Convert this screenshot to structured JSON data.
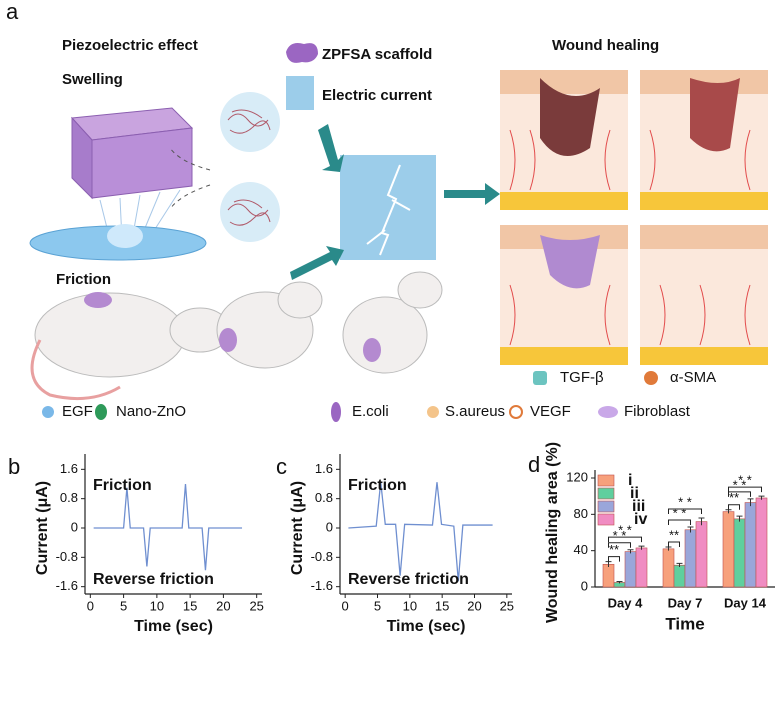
{
  "panel_a": {
    "label": "a",
    "heading_left": "Piezoelectric effect",
    "swelling": "Swelling",
    "friction": "Friction",
    "scaffold": "ZPFSA scaffold",
    "current": "Electric current",
    "heading_right": "Wound healing",
    "legend": [
      "TGF-β",
      "α-SMA",
      "EGF",
      "Nano-ZnO",
      "E.coli",
      "S.aureus",
      "VEGF",
      "Fibroblast"
    ]
  },
  "chart_data": [
    {
      "type": "line",
      "label": "b",
      "xlabel": "Time (sec)",
      "ylabel": "Current (μA)",
      "annotations": [
        "Friction",
        "Reverse friction"
      ],
      "color": "#6f8fd0",
      "x": [
        0.5,
        5,
        5.5,
        6,
        8,
        8.5,
        9,
        13.8,
        14.3,
        14.8,
        16.8,
        17.3,
        17.8,
        22.8
      ],
      "values": [
        0,
        0,
        1.1,
        0,
        0,
        -1.05,
        0,
        0,
        1.2,
        0,
        0,
        -1.15,
        0,
        0
      ],
      "xlim": [
        -0.8,
        25.8
      ],
      "xticks": [
        0,
        5,
        10,
        15,
        20,
        25
      ],
      "ylim": [
        -1.8,
        1.8
      ],
      "yticks": [
        1.6,
        0.8,
        0,
        -0.8,
        -1.6
      ]
    },
    {
      "type": "line",
      "label": "c",
      "xlabel": "Time (sec)",
      "ylabel": "Current (μA)",
      "annotations": [
        "Friction",
        "Reverse friction"
      ],
      "color": "#6f8fd0",
      "x": [
        0.5,
        4.8,
        5.5,
        6.2,
        7.8,
        8.5,
        9.2,
        13.5,
        14.2,
        14.9,
        16.8,
        17.5,
        18.2,
        22.8
      ],
      "values": [
        0,
        0.05,
        1.25,
        0.1,
        0.1,
        -1.3,
        0.1,
        0.08,
        1.25,
        0.1,
        0.05,
        -1.45,
        0.08,
        0.08
      ],
      "xlim": [
        -0.8,
        25.8
      ],
      "xticks": [
        0,
        5,
        10,
        15,
        20,
        25
      ],
      "ylim": [
        -1.8,
        1.8
      ],
      "yticks": [
        1.6,
        0.8,
        0,
        -0.8,
        -1.6
      ]
    },
    {
      "type": "bar",
      "label": "d",
      "xlabel": "Time",
      "ylabel": "Wound healing area (%)",
      "categories": [
        "Day 4",
        "Day 7",
        "Day 14"
      ],
      "legend": "upper left",
      "series": [
        {
          "name": "i",
          "color": "#f7a07c",
          "values": [
            25,
            42,
            83
          ],
          "errors": [
            3,
            2,
            2
          ]
        },
        {
          "name": "ii",
          "color": "#5fcf9e",
          "values": [
            5,
            24,
            75
          ],
          "errors": [
            1,
            2,
            3
          ]
        },
        {
          "name": "iii",
          "color": "#9aa6da",
          "values": [
            39,
            63,
            93
          ],
          "errors": [
            2,
            3,
            4
          ]
        },
        {
          "name": "iv",
          "color": "#f08cc2",
          "values": [
            43,
            72,
            98
          ],
          "errors": [
            2,
            4,
            2
          ]
        }
      ],
      "significance": [
        [
          "**",
          "* *",
          "* *"
        ],
        [
          "**",
          "* *",
          "* *"
        ],
        [
          "**",
          "* *",
          "* *"
        ]
      ],
      "ylim": [
        0,
        120
      ],
      "yticks": [
        0,
        40,
        80,
        120
      ]
    }
  ]
}
